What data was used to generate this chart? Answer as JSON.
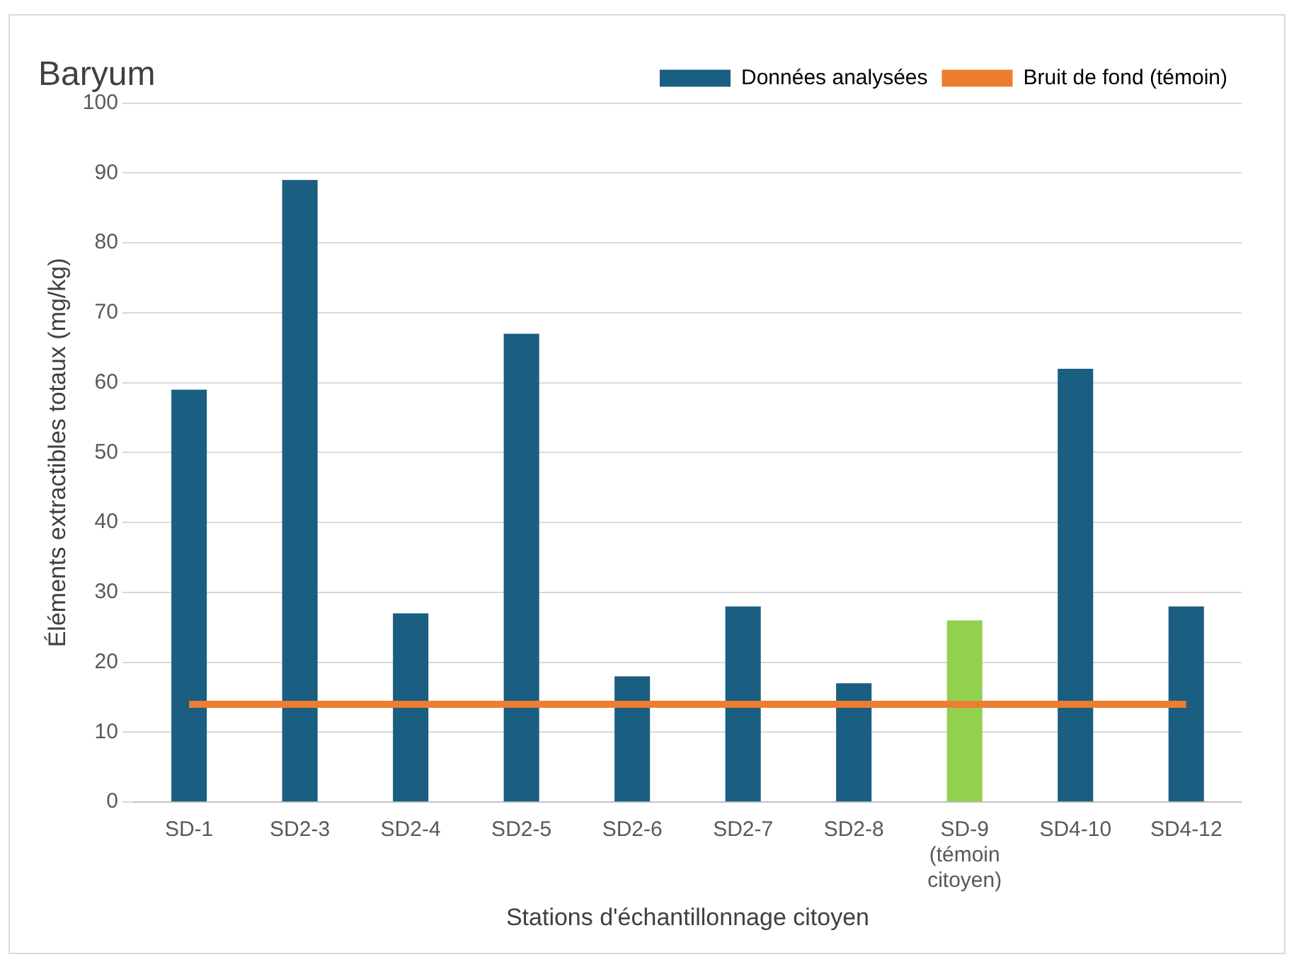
{
  "chart_data": {
    "type": "bar",
    "title": "Baryum",
    "xlabel": "Stations d'échantillonnage citoyen",
    "ylabel": "Éléments extractibles totaux (mg/kg)",
    "categories": [
      "SD-1",
      "SD2-3",
      "SD2-4",
      "SD2-5",
      "SD2-6",
      "SD2-7",
      "SD2-8",
      "SD-9 (témoin citoyen)",
      "SD4-10",
      "SD4-12"
    ],
    "series": [
      {
        "name": "Données analysées",
        "color": "#1a5e82",
        "colors": [
          "#1a5e82",
          "#1a5e82",
          "#1a5e82",
          "#1a5e82",
          "#1a5e82",
          "#1a5e82",
          "#1a5e82",
          "#92d050",
          "#1a5e82",
          "#1a5e82"
        ],
        "values": [
          59,
          89,
          27,
          67,
          18,
          28,
          17,
          26,
          62,
          28
        ]
      },
      {
        "name": "Bruit de fond (témoin)",
        "type": "line",
        "color": "#ed7d31",
        "values": [
          14,
          14,
          14,
          14,
          14,
          14,
          14,
          14,
          14,
          14
        ]
      }
    ],
    "ylim": [
      0,
      100
    ],
    "yticks": [
      0,
      10,
      20,
      30,
      40,
      50,
      60,
      70,
      80,
      90,
      100
    ],
    "grid": "y",
    "legend": "top right",
    "marker": "none"
  }
}
